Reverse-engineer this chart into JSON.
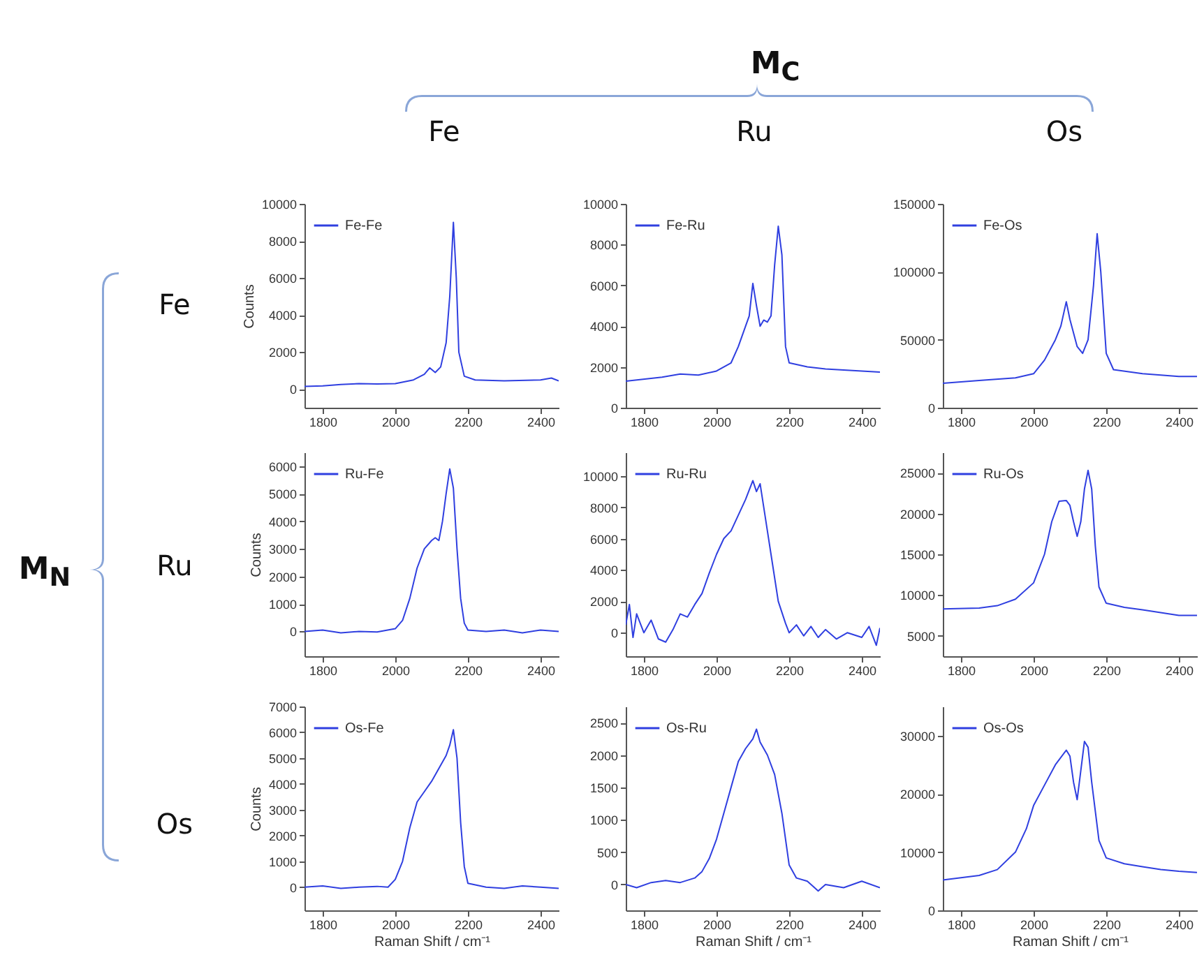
{
  "chart_data": [
    {
      "type": "other",
      "annotations": [
        "M$_{C}$",
        "Fe",
        "Ru",
        "Os",
        "M$_{N}$",
        "Fe",
        "Ru",
        "Os"
      ]
    },
    {
      "type": "line",
      "ylabel": "Counts",
      "legend": "top left",
      "xlim": [
        1750,
        2450
      ],
      "xticks": [
        1800,
        2000,
        2200,
        2400
      ],
      "ylim": [
        -1000,
        10000
      ],
      "yticks": [
        0,
        2000,
        4000,
        6000,
        8000,
        10000
      ],
      "x": [
        1750,
        1800,
        1850,
        1900,
        1950,
        2000,
        2050,
        2080,
        2095,
        2110,
        2125,
        2140,
        2150,
        2160,
        2168,
        2175,
        2190,
        2220,
        2300,
        2400,
        2430,
        2450
      ],
      "series": [
        {
          "name": "Fe-Fe",
          "color": "#2f3fe0",
          "values": [
            150,
            180,
            250,
            300,
            280,
            300,
            500,
            800,
            1150,
            900,
            1200,
            2500,
            5000,
            9000,
            6000,
            2000,
            700,
            500,
            450,
            500,
            600,
            450
          ]
        }
      ]
    },
    {
      "type": "line",
      "legend": "top left",
      "xlim": [
        1750,
        2450
      ],
      "xticks": [
        1800,
        2000,
        2200,
        2400
      ],
      "ylim": [
        0,
        10000
      ],
      "yticks": [
        0,
        2000,
        4000,
        6000,
        8000,
        10000
      ],
      "x": [
        1750,
        1850,
        1900,
        1950,
        2000,
        2040,
        2060,
        2080,
        2090,
        2100,
        2110,
        2120,
        2130,
        2140,
        2150,
        2160,
        2170,
        2180,
        2190,
        2200,
        2250,
        2300,
        2400,
        2450
      ],
      "series": [
        {
          "name": "Fe-Ru",
          "color": "#2f3fe0",
          "values": [
            1300,
            1500,
            1650,
            1600,
            1800,
            2200,
            3000,
            4000,
            4500,
            6100,
            5000,
            4000,
            4300,
            4200,
            4500,
            7000,
            8900,
            7500,
            3000,
            2200,
            2000,
            1900,
            1800,
            1750
          ]
        }
      ]
    },
    {
      "type": "line",
      "legend": "top left",
      "xlim": [
        1750,
        2450
      ],
      "xticks": [
        1800,
        2000,
        2200,
        2400
      ],
      "ylim": [
        0,
        150000
      ],
      "yticks": [
        0,
        50000,
        100000,
        150000
      ],
      "x": [
        1750,
        1850,
        1950,
        2000,
        2030,
        2060,
        2075,
        2090,
        2100,
        2120,
        2135,
        2150,
        2165,
        2175,
        2185,
        2200,
        2220,
        2300,
        2400,
        2450
      ],
      "series": [
        {
          "name": "Fe-Os",
          "color": "#2f3fe0",
          "values": [
            18000,
            20000,
            22000,
            25000,
            35000,
            50000,
            60000,
            78000,
            65000,
            45000,
            40000,
            50000,
            90000,
            128000,
            100000,
            40000,
            28000,
            25000,
            23000,
            23000
          ]
        }
      ]
    },
    {
      "type": "line",
      "ylabel": "Counts",
      "legend": "top left",
      "xlim": [
        1750,
        2450
      ],
      "xticks": [
        1800,
        2000,
        2200,
        2400
      ],
      "ylim": [
        -900,
        6500
      ],
      "yticks": [
        0,
        1000,
        2000,
        3000,
        4000,
        5000,
        6000
      ],
      "x": [
        1750,
        1800,
        1850,
        1900,
        1950,
        2000,
        2020,
        2040,
        2060,
        2080,
        2100,
        2110,
        2120,
        2130,
        2140,
        2150,
        2160,
        2170,
        2180,
        2190,
        2200,
        2250,
        2300,
        2350,
        2400,
        2450
      ],
      "series": [
        {
          "name": "Ru-Fe",
          "color": "#2f3fe0",
          "values": [
            0,
            50,
            -50,
            0,
            -20,
            100,
            400,
            1200,
            2300,
            3000,
            3300,
            3400,
            3300,
            4000,
            5000,
            5900,
            5200,
            3000,
            1200,
            300,
            50,
            0,
            50,
            -50,
            50,
            0
          ]
        }
      ]
    },
    {
      "type": "line",
      "legend": "top left",
      "xlim": [
        1750,
        2450
      ],
      "xticks": [
        1800,
        2000,
        2200,
        2400
      ],
      "ylim": [
        -1500,
        11500
      ],
      "yticks": [
        0,
        2000,
        4000,
        6000,
        8000,
        10000
      ],
      "x": [
        1750,
        1760,
        1770,
        1780,
        1800,
        1820,
        1840,
        1860,
        1880,
        1900,
        1920,
        1940,
        1960,
        1980,
        2000,
        2020,
        2040,
        2060,
        2080,
        2100,
        2110,
        2120,
        2130,
        2150,
        2170,
        2190,
        2200,
        2220,
        2240,
        2260,
        2280,
        2300,
        2330,
        2360,
        2400,
        2420,
        2440,
        2450
      ],
      "series": [
        {
          "name": "Ru-Ru",
          "color": "#2f3fe0",
          "values": [
            500,
            1800,
            -300,
            1200,
            0,
            800,
            -400,
            -600,
            200,
            1200,
            1000,
            1800,
            2500,
            3800,
            5000,
            6000,
            6500,
            7500,
            8500,
            9700,
            9000,
            9500,
            8000,
            5000,
            2000,
            600,
            0,
            500,
            -200,
            400,
            -300,
            200,
            -400,
            0,
            -300,
            400,
            -800,
            300
          ]
        }
      ]
    },
    {
      "type": "line",
      "legend": "top left",
      "xlim": [
        1750,
        2450
      ],
      "xticks": [
        1800,
        2000,
        2200,
        2400
      ],
      "ylim": [
        2500,
        27500
      ],
      "yticks": [
        5000,
        10000,
        15000,
        20000,
        25000
      ],
      "x": [
        1750,
        1850,
        1900,
        1950,
        2000,
        2030,
        2050,
        2070,
        2090,
        2100,
        2110,
        2120,
        2130,
        2140,
        2150,
        2160,
        2170,
        2180,
        2200,
        2250,
        2300,
        2400,
        2450
      ],
      "series": [
        {
          "name": "Ru-Os",
          "color": "#2f3fe0",
          "values": [
            8300,
            8400,
            8700,
            9500,
            11500,
            15000,
            19000,
            21500,
            21600,
            21000,
            19000,
            17200,
            19000,
            23000,
            25300,
            23000,
            16000,
            11000,
            9000,
            8500,
            8200,
            7500,
            7500
          ]
        }
      ]
    },
    {
      "type": "line",
      "ylabel": "Counts",
      "xlabel": "Raman Shift / cm⁻¹",
      "legend": "top left",
      "xlim": [
        1750,
        2450
      ],
      "xticks": [
        1800,
        2000,
        2200,
        2400
      ],
      "ylim": [
        -900,
        7000
      ],
      "yticks": [
        0,
        1000,
        2000,
        3000,
        4000,
        5000,
        6000,
        7000
      ],
      "x": [
        1750,
        1800,
        1850,
        1900,
        1950,
        1980,
        2000,
        2020,
        2040,
        2060,
        2080,
        2100,
        2120,
        2140,
        2150,
        2160,
        2170,
        2180,
        2190,
        2200,
        2250,
        2300,
        2350,
        2400,
        2450
      ],
      "series": [
        {
          "name": "Os-Fe",
          "color": "#2f3fe0",
          "values": [
            0,
            50,
            -50,
            0,
            30,
            0,
            300,
            1000,
            2300,
            3300,
            3700,
            4100,
            4600,
            5100,
            5500,
            6100,
            5000,
            2500,
            800,
            150,
            0,
            -50,
            50,
            0,
            -50
          ]
        }
      ]
    },
    {
      "type": "line",
      "xlabel": "Raman Shift / cm⁻¹",
      "legend": "top left",
      "xlim": [
        1750,
        2450
      ],
      "xticks": [
        1800,
        2000,
        2200,
        2400
      ],
      "ylim": [
        -400,
        2750
      ],
      "yticks": [
        0,
        500,
        1000,
        1500,
        2000,
        2500
      ],
      "x": [
        1750,
        1780,
        1820,
        1860,
        1900,
        1940,
        1960,
        1980,
        2000,
        2020,
        2040,
        2060,
        2080,
        2100,
        2110,
        2120,
        2140,
        2160,
        2180,
        2200,
        2220,
        2250,
        2280,
        2300,
        2350,
        2400,
        2450
      ],
      "series": [
        {
          "name": "Os-Ru",
          "color": "#2f3fe0",
          "values": [
            0,
            -50,
            30,
            60,
            30,
            100,
            200,
            400,
            700,
            1100,
            1500,
            1900,
            2100,
            2250,
            2400,
            2200,
            2000,
            1700,
            1100,
            300,
            100,
            50,
            -100,
            0,
            -50,
            50,
            -50
          ]
        }
      ]
    },
    {
      "type": "line",
      "xlabel": "Raman Shift / cm⁻¹",
      "legend": "top left",
      "xlim": [
        1750,
        2450
      ],
      "xticks": [
        1800,
        2000,
        2200,
        2400
      ],
      "ylim": [
        0,
        35000
      ],
      "yticks": [
        0,
        10000,
        20000,
        30000
      ],
      "x": [
        1750,
        1800,
        1850,
        1900,
        1950,
        1980,
        2000,
        2030,
        2060,
        2090,
        2100,
        2110,
        2120,
        2130,
        2140,
        2150,
        2160,
        2180,
        2200,
        2250,
        2300,
        2350,
        2400,
        2450
      ],
      "series": [
        {
          "name": "Os-Os",
          "color": "#2f3fe0",
          "values": [
            5200,
            5600,
            6000,
            7000,
            10000,
            14000,
            18000,
            21500,
            25000,
            27500,
            26500,
            22000,
            19000,
            24000,
            29000,
            28000,
            22000,
            12000,
            9000,
            8000,
            7500,
            7000,
            6700,
            6500
          ]
        }
      ]
    }
  ]
}
